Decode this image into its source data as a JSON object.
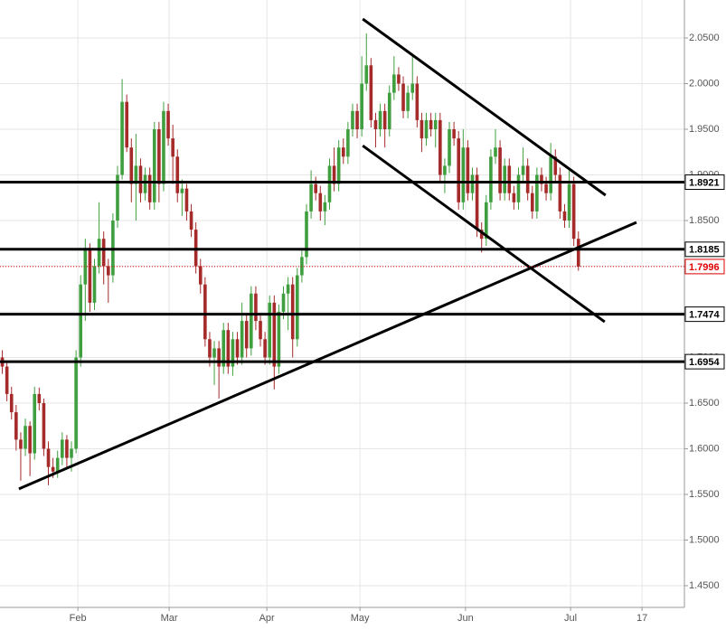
{
  "chart_data": {
    "type": "candlestick",
    "x": [
      0,
      1,
      2,
      3,
      4,
      5,
      6,
      7,
      8,
      9,
      10,
      11,
      12,
      13,
      14,
      15,
      16,
      17,
      18,
      19,
      20,
      21,
      22,
      23,
      24,
      25,
      26,
      27,
      28,
      29,
      30,
      31,
      32,
      33,
      34,
      35,
      36,
      37,
      38,
      39,
      40,
      41,
      42,
      43,
      44,
      45,
      46,
      47,
      48,
      49,
      50,
      51,
      52,
      53,
      54,
      55,
      56,
      57,
      58,
      59,
      60,
      61,
      62,
      63,
      64,
      65,
      66,
      67,
      68,
      69,
      70,
      71,
      72,
      73,
      74,
      75,
      76,
      77,
      78,
      79,
      80,
      81,
      82,
      83,
      84,
      85,
      86,
      87,
      88,
      89,
      90,
      91,
      92,
      93,
      94,
      95,
      96,
      97,
      98,
      99,
      100,
      101,
      102,
      103,
      104,
      105,
      106,
      107,
      108,
      109,
      110,
      111,
      112,
      113,
      114,
      115,
      116,
      117,
      118,
      119,
      120,
      121,
      122,
      123,
      124,
      125
    ],
    "ohlc": [
      [
        1.7,
        1.708,
        1.682,
        1.69
      ],
      [
        1.69,
        1.695,
        1.652,
        1.66
      ],
      [
        1.66,
        1.668,
        1.632,
        1.64
      ],
      [
        1.64,
        1.648,
        1.598,
        1.61
      ],
      [
        1.61,
        1.618,
        1.565,
        1.6
      ],
      [
        1.6,
        1.633,
        1.592,
        1.625
      ],
      [
        1.625,
        1.63,
        1.57,
        1.595
      ],
      [
        1.595,
        1.668,
        1.588,
        1.66
      ],
      [
        1.66,
        1.667,
        1.642,
        1.65
      ],
      [
        1.65,
        1.655,
        1.592,
        1.6
      ],
      [
        1.6,
        1.608,
        1.56,
        1.58
      ],
      [
        1.58,
        1.59,
        1.568,
        1.575
      ],
      [
        1.575,
        1.598,
        1.568,
        1.59
      ],
      [
        1.59,
        1.618,
        1.582,
        1.61
      ],
      [
        1.61,
        1.615,
        1.58,
        1.59
      ],
      [
        1.59,
        1.608,
        1.575,
        1.6
      ],
      [
        1.6,
        1.708,
        1.595,
        1.7
      ],
      [
        1.7,
        1.79,
        1.69,
        1.78
      ],
      [
        1.78,
        1.83,
        1.74,
        1.82
      ],
      [
        1.82,
        1.825,
        1.75,
        1.76
      ],
      [
        1.76,
        1.808,
        1.752,
        1.8
      ],
      [
        1.8,
        1.87,
        1.792,
        1.83
      ],
      [
        1.83,
        1.838,
        1.78,
        1.8
      ],
      [
        1.8,
        1.808,
        1.76,
        1.79
      ],
      [
        1.79,
        1.858,
        1.782,
        1.85
      ],
      [
        1.85,
        1.91,
        1.842,
        1.9
      ],
      [
        1.9,
        2.005,
        1.895,
        1.98
      ],
      [
        1.98,
        1.988,
        1.925,
        1.93
      ],
      [
        1.93,
        1.94,
        1.87,
        1.89
      ],
      [
        1.89,
        1.945,
        1.85,
        1.91
      ],
      [
        1.91,
        1.918,
        1.87,
        1.88
      ],
      [
        1.88,
        1.908,
        1.872,
        1.9
      ],
      [
        1.9,
        1.908,
        1.862,
        1.87
      ],
      [
        1.87,
        1.958,
        1.862,
        1.95
      ],
      [
        1.95,
        1.958,
        1.87,
        1.89
      ],
      [
        1.89,
        1.98,
        1.882,
        1.97
      ],
      [
        1.97,
        1.978,
        1.932,
        1.94
      ],
      [
        1.94,
        1.955,
        1.89,
        1.92
      ],
      [
        1.92,
        1.928,
        1.87,
        1.88
      ],
      [
        1.88,
        1.895,
        1.855,
        1.885
      ],
      [
        1.885,
        1.89,
        1.85,
        1.86
      ],
      [
        1.86,
        1.868,
        1.832,
        1.84
      ],
      [
        1.84,
        1.848,
        1.792,
        1.8
      ],
      [
        1.8,
        1.808,
        1.77,
        1.78
      ],
      [
        1.78,
        1.788,
        1.712,
        1.72
      ],
      [
        1.72,
        1.728,
        1.69,
        1.7
      ],
      [
        1.7,
        1.718,
        1.67,
        1.71
      ],
      [
        1.71,
        1.718,
        1.655,
        1.69
      ],
      [
        1.69,
        1.738,
        1.682,
        1.73
      ],
      [
        1.73,
        1.738,
        1.682,
        1.69
      ],
      [
        1.69,
        1.728,
        1.68,
        1.72
      ],
      [
        1.72,
        1.728,
        1.692,
        1.7
      ],
      [
        1.7,
        1.76,
        1.692,
        1.74
      ],
      [
        1.74,
        1.748,
        1.7,
        1.71
      ],
      [
        1.71,
        1.778,
        1.702,
        1.77
      ],
      [
        1.77,
        1.778,
        1.73,
        1.74
      ],
      [
        1.74,
        1.748,
        1.712,
        1.72
      ],
      [
        1.72,
        1.728,
        1.692,
        1.7
      ],
      [
        1.7,
        1.768,
        1.692,
        1.76
      ],
      [
        1.76,
        1.768,
        1.665,
        1.69
      ],
      [
        1.69,
        1.758,
        1.682,
        1.75
      ],
      [
        1.75,
        1.778,
        1.742,
        1.77
      ],
      [
        1.77,
        1.788,
        1.73,
        1.78
      ],
      [
        1.78,
        1.788,
        1.7,
        1.72
      ],
      [
        1.72,
        1.798,
        1.712,
        1.79
      ],
      [
        1.79,
        1.818,
        1.782,
        1.81
      ],
      [
        1.81,
        1.868,
        1.802,
        1.86
      ],
      [
        1.86,
        1.905,
        1.852,
        1.89
      ],
      [
        1.89,
        1.898,
        1.872,
        1.88
      ],
      [
        1.88,
        1.888,
        1.85,
        1.86
      ],
      [
        1.86,
        1.878,
        1.845,
        1.87
      ],
      [
        1.87,
        1.918,
        1.862,
        1.91
      ],
      [
        1.91,
        1.93,
        1.882,
        1.89
      ],
      [
        1.89,
        1.938,
        1.882,
        1.93
      ],
      [
        1.93,
        1.94,
        1.912,
        1.92
      ],
      [
        1.92,
        1.958,
        1.912,
        1.95
      ],
      [
        1.95,
        1.978,
        1.942,
        1.97
      ],
      [
        1.97,
        1.978,
        1.94,
        1.95
      ],
      [
        1.95,
        2.03,
        1.942,
        2.0
      ],
      [
        2.0,
        2.055,
        1.992,
        2.02
      ],
      [
        2.02,
        2.028,
        1.952,
        1.96
      ],
      [
        1.96,
        1.968,
        1.93,
        1.95
      ],
      [
        1.95,
        1.978,
        1.942,
        1.97
      ],
      [
        1.97,
        1.978,
        1.93,
        1.95
      ],
      [
        1.95,
        1.998,
        1.942,
        1.99
      ],
      [
        1.99,
        2.03,
        1.982,
        2.01
      ],
      [
        2.01,
        2.018,
        1.992,
        2.0
      ],
      [
        2.0,
        2.008,
        1.962,
        1.97
      ],
      [
        1.97,
        1.998,
        1.962,
        1.99
      ],
      [
        1.99,
        2.03,
        1.982,
        2.0
      ],
      [
        2.0,
        2.008,
        1.952,
        1.96
      ],
      [
        1.96,
        1.968,
        1.925,
        1.94
      ],
      [
        1.94,
        1.968,
        1.932,
        1.96
      ],
      [
        1.96,
        1.968,
        1.942,
        1.95
      ],
      [
        1.95,
        1.968,
        1.93,
        1.96
      ],
      [
        1.96,
        1.968,
        1.892,
        1.9
      ],
      [
        1.9,
        1.918,
        1.88,
        1.91
      ],
      [
        1.91,
        1.958,
        1.902,
        1.95
      ],
      [
        1.95,
        1.958,
        1.932,
        1.94
      ],
      [
        1.94,
        1.948,
        1.862,
        1.87
      ],
      [
        1.87,
        1.95,
        1.862,
        1.93
      ],
      [
        1.93,
        1.938,
        1.872,
        1.88
      ],
      [
        1.88,
        1.908,
        1.872,
        1.9
      ],
      [
        1.9,
        1.908,
        1.832,
        1.84
      ],
      [
        1.84,
        1.848,
        1.815,
        1.83
      ],
      [
        1.83,
        1.878,
        1.822,
        1.87
      ],
      [
        1.87,
        1.928,
        1.862,
        1.92
      ],
      [
        1.92,
        1.95,
        1.912,
        1.93
      ],
      [
        1.93,
        1.938,
        1.872,
        1.88
      ],
      [
        1.88,
        1.918,
        1.872,
        1.91
      ],
      [
        1.91,
        1.918,
        1.872,
        1.88
      ],
      [
        1.88,
        1.888,
        1.862,
        1.87
      ],
      [
        1.87,
        1.908,
        1.862,
        1.9
      ],
      [
        1.9,
        1.93,
        1.892,
        1.91
      ],
      [
        1.91,
        1.918,
        1.872,
        1.88
      ],
      [
        1.88,
        1.888,
        1.852,
        1.86
      ],
      [
        1.86,
        1.908,
        1.852,
        1.9
      ],
      [
        1.9,
        1.908,
        1.882,
        1.89
      ],
      [
        1.89,
        1.898,
        1.872,
        1.88
      ],
      [
        1.88,
        1.935,
        1.872,
        1.92
      ],
      [
        1.92,
        1.928,
        1.892,
        1.9
      ],
      [
        1.9,
        1.908,
        1.852,
        1.86
      ],
      [
        1.86,
        1.868,
        1.842,
        1.85
      ],
      [
        1.85,
        1.905,
        1.842,
        1.89
      ],
      [
        1.89,
        1.898,
        1.822,
        1.83
      ],
      [
        1.83,
        1.838,
        1.795,
        1.7996
      ]
    ],
    "up_color": "#3f9f3f",
    "down_color": "#a52a2a",
    "xlim": [
      -0.5,
      148
    ],
    "xticks": [
      {
        "value": 16.4,
        "label": "Feb"
      },
      {
        "value": 36.2,
        "label": "Mar"
      },
      {
        "value": 57.4,
        "label": "Apr"
      },
      {
        "value": 77.6,
        "label": "May"
      },
      {
        "value": 100.5,
        "label": "Jun"
      },
      {
        "value": 123.3,
        "label": "Jul"
      },
      {
        "value": 138.8,
        "label": "17"
      }
    ],
    "ylim": [
      1.4262,
      2.0916
    ],
    "yticks": [
      {
        "value": 1.45,
        "label": "1.4500"
      },
      {
        "value": 1.5,
        "label": "1.5000"
      },
      {
        "value": 1.55,
        "label": "1.5500"
      },
      {
        "value": 1.6,
        "label": "1.6000"
      },
      {
        "value": 1.65,
        "label": "1.6500"
      },
      {
        "value": 1.7,
        "label": "1.7000"
      },
      {
        "value": 1.75,
        "label": "1.7500"
      },
      {
        "value": 1.8,
        "label": "1.8000"
      },
      {
        "value": 1.85,
        "label": "1.8500"
      },
      {
        "value": 1.9,
        "label": "1.9000"
      },
      {
        "value": 1.95,
        "label": "1.9500"
      },
      {
        "value": 2.0,
        "label": "2.0000"
      },
      {
        "value": 2.05,
        "label": "2.0500"
      }
    ],
    "grid": true,
    "levels": [
      1.8921,
      1.8185,
      1.7474,
      1.6954
    ],
    "level_color": "#000000",
    "last_price": 1.7996,
    "last_price_color": "#e00000",
    "trendlines": [
      {
        "x": [
          3.6,
          137.6
        ],
        "y": [
          1.556,
          1.848
        ]
      },
      {
        "x": [
          78.2,
          130.9
        ],
        "y": [
          2.0708,
          1.8777
        ]
      },
      {
        "x": [
          78.2,
          130.7
        ],
        "y": [
          1.932,
          1.739
        ]
      }
    ]
  }
}
